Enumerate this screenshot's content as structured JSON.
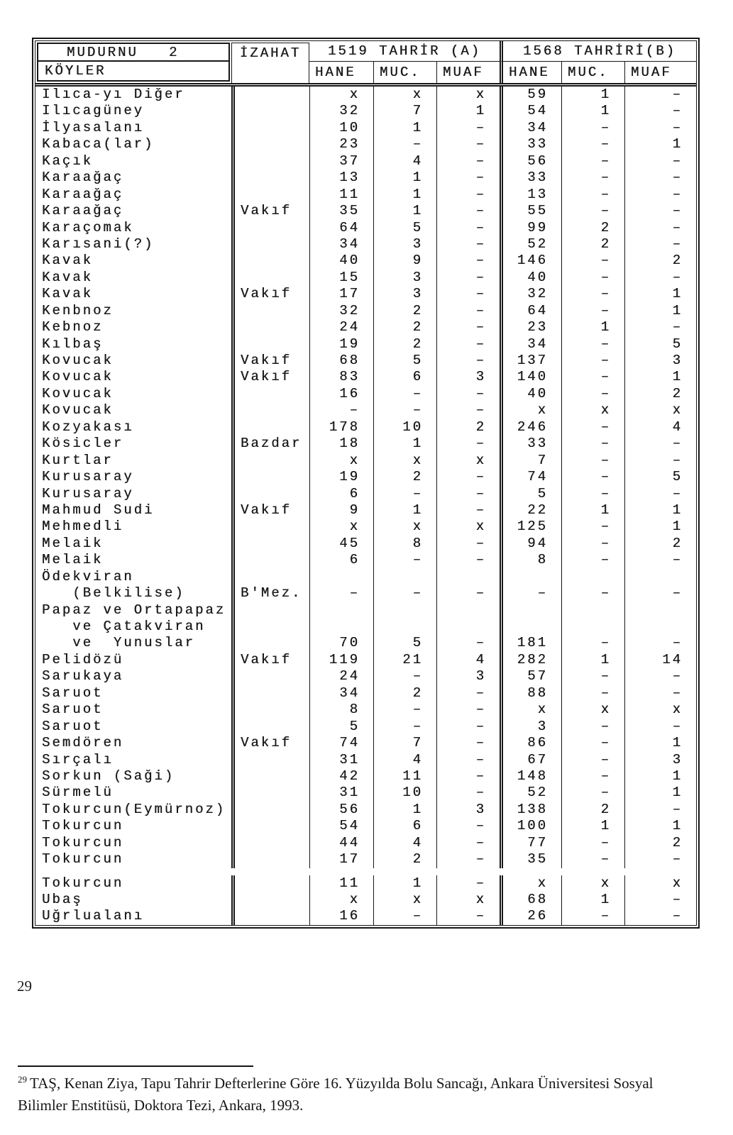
{
  "colors": {
    "ink": "#1b1b1b",
    "paper": "#ffffff"
  },
  "table": {
    "header": {
      "title": "MUDURNU   2",
      "koyler": "KÖYLER",
      "izahat": "İZAHAT",
      "group_a": "1519 TAHRİR (A)",
      "group_b": "1568 TAHRİRİ(B)",
      "sub": [
        "HANE",
        "MUC.",
        "MUAF"
      ]
    },
    "rows": [
      {
        "koy": "Ilıca-yı Diğer",
        "iz": "",
        "a": [
          "x",
          "x",
          "x"
        ],
        "b": [
          "59",
          "1",
          "–"
        ]
      },
      {
        "koy": "Ilıcagüney",
        "iz": "",
        "a": [
          "32",
          "7",
          "1"
        ],
        "b": [
          "54",
          "1",
          "–"
        ]
      },
      {
        "koy": "İlyasalanı",
        "iz": "",
        "a": [
          "10",
          "1",
          "–"
        ],
        "b": [
          "34",
          "–",
          "–"
        ]
      },
      {
        "koy": "Kabaca(lar)",
        "iz": "",
        "a": [
          "23",
          "–",
          "–"
        ],
        "b": [
          "33",
          "–",
          "1"
        ]
      },
      {
        "koy": "Kaçık",
        "iz": "",
        "a": [
          "37",
          "4",
          "–"
        ],
        "b": [
          "56",
          "–",
          "–"
        ]
      },
      {
        "koy": "Karaağaç",
        "iz": "",
        "a": [
          "13",
          "1",
          "–"
        ],
        "b": [
          "33",
          "–",
          "–"
        ]
      },
      {
        "koy": "Karaağaç",
        "iz": "",
        "a": [
          "11",
          "1",
          "–"
        ],
        "b": [
          "13",
          "–",
          "–"
        ]
      },
      {
        "koy": "Karaağaç",
        "iz": "Vakıf",
        "a": [
          "35",
          "1",
          "–"
        ],
        "b": [
          "55",
          "–",
          "–"
        ]
      },
      {
        "koy": "Karaçomak",
        "iz": "",
        "a": [
          "64",
          "5",
          "–"
        ],
        "b": [
          "99",
          "2",
          "–"
        ]
      },
      {
        "koy": "Karısani(?)",
        "iz": "",
        "a": [
          "34",
          "3",
          "–"
        ],
        "b": [
          "52",
          "2",
          "–"
        ]
      },
      {
        "koy": "Kavak",
        "iz": "",
        "a": [
          "40",
          "9",
          "–"
        ],
        "b": [
          "146",
          "–",
          "2"
        ]
      },
      {
        "koy": "Kavak",
        "iz": "",
        "a": [
          "15",
          "3",
          "–"
        ],
        "b": [
          "40",
          "–",
          "–"
        ]
      },
      {
        "koy": "Kavak",
        "iz": "Vakıf",
        "a": [
          "17",
          "3",
          "–"
        ],
        "b": [
          "32",
          "–",
          "1"
        ]
      },
      {
        "koy": "Kenbnoz",
        "iz": "",
        "a": [
          "32",
          "2",
          "–"
        ],
        "b": [
          "64",
          "–",
          "1"
        ]
      },
      {
        "koy": "Kebnoz",
        "iz": "",
        "a": [
          "24",
          "2",
          "–"
        ],
        "b": [
          "23",
          "1",
          "–"
        ]
      },
      {
        "koy": "Kılbaş",
        "iz": "",
        "a": [
          "19",
          "2",
          "–"
        ],
        "b": [
          "34",
          "–",
          "5"
        ]
      },
      {
        "koy": "Kovucak",
        "iz": "Vakıf",
        "a": [
          "68",
          "5",
          "–"
        ],
        "b": [
          "137",
          "–",
          "3"
        ]
      },
      {
        "koy": "Kovucak",
        "iz": "Vakıf",
        "a": [
          "83",
          "6",
          "3"
        ],
        "b": [
          "140",
          "–",
          "1"
        ]
      },
      {
        "koy": "Kovucak",
        "iz": "",
        "a": [
          "16",
          "–",
          "–"
        ],
        "b": [
          "40",
          "–",
          "2"
        ]
      },
      {
        "koy": "Kovucak",
        "iz": "",
        "a": [
          "–",
          "–",
          "–"
        ],
        "b": [
          "x",
          "x",
          "x"
        ]
      },
      {
        "koy": "Kozyakası",
        "iz": "",
        "a": [
          "178",
          "10",
          "2"
        ],
        "b": [
          "246",
          "–",
          "4"
        ]
      },
      {
        "koy": "Kösicler",
        "iz": "Bazdar",
        "a": [
          "18",
          "1",
          "–"
        ],
        "b": [
          "33",
          "–",
          "–"
        ]
      },
      {
        "koy": "Kurtlar",
        "iz": "",
        "a": [
          "x",
          "x",
          "x"
        ],
        "b": [
          "7",
          "–",
          "–"
        ]
      },
      {
        "koy": "Kurusaray",
        "iz": "",
        "a": [
          "19",
          "2",
          "–"
        ],
        "b": [
          "74",
          "–",
          "5"
        ]
      },
      {
        "koy": "Kurusaray",
        "iz": "",
        "a": [
          "6",
          "–",
          "–"
        ],
        "b": [
          "5",
          "–",
          "–"
        ]
      },
      {
        "koy": "Mahmud Sudi",
        "iz": "Vakıf",
        "a": [
          "9",
          "1",
          "–"
        ],
        "b": [
          "22",
          "1",
          "1"
        ]
      },
      {
        "koy": "Mehmedli",
        "iz": "",
        "a": [
          "x",
          "x",
          "x"
        ],
        "b": [
          "125",
          "–",
          "1"
        ]
      },
      {
        "koy": "Melaik",
        "iz": "",
        "a": [
          "45",
          "8",
          "–"
        ],
        "b": [
          "94",
          "–",
          "2"
        ]
      },
      {
        "koy": "Melaik",
        "iz": "",
        "a": [
          "6",
          "–",
          "–"
        ],
        "b": [
          "8",
          "–",
          "–"
        ]
      },
      {
        "koy": "Ödekviran",
        "iz": "",
        "a": [
          "",
          "",
          ""
        ],
        "b": [
          "",
          "",
          ""
        ]
      },
      {
        "koy": "   (Belkilise)",
        "iz": "B'Mez.",
        "a": [
          "–",
          "–",
          "–"
        ],
        "b": [
          "–",
          "–",
          "–"
        ]
      },
      {
        "koy": "Papaz ve Ortapapaz",
        "iz": "",
        "a": [
          "",
          "",
          ""
        ],
        "b": [
          "",
          "",
          ""
        ]
      },
      {
        "koy": "   ve Çatakviran",
        "iz": "",
        "a": [
          "",
          "",
          ""
        ],
        "b": [
          "",
          "",
          ""
        ]
      },
      {
        "koy": "   ve  Yunuslar",
        "iz": "",
        "a": [
          "70",
          "5",
          "–"
        ],
        "b": [
          "181",
          "–",
          "–"
        ]
      },
      {
        "koy": "Pelidözü",
        "iz": "Vakıf",
        "a": [
          "119",
          "21",
          "4"
        ],
        "b": [
          "282",
          "1",
          "14"
        ]
      },
      {
        "koy": "Sarukaya",
        "iz": "",
        "a": [
          "24",
          "–",
          "3"
        ],
        "b": [
          "57",
          "–",
          "–"
        ]
      },
      {
        "koy": "Saruot",
        "iz": "",
        "a": [
          "34",
          "2",
          "–"
        ],
        "b": [
          "88",
          "–",
          "–"
        ]
      },
      {
        "koy": "Saruot",
        "iz": "",
        "a": [
          "8",
          "–",
          "–"
        ],
        "b": [
          "x",
          "x",
          "x"
        ]
      },
      {
        "koy": "Saruot",
        "iz": "",
        "a": [
          "5",
          "–",
          "–"
        ],
        "b": [
          "3",
          "–",
          "–"
        ]
      },
      {
        "koy": "Semdören",
        "iz": "Vakıf",
        "a": [
          "74",
          "7",
          "–"
        ],
        "b": [
          "86",
          "–",
          "1"
        ]
      },
      {
        "koy": "Sırçalı",
        "iz": "",
        "a": [
          "31",
          "4",
          "–"
        ],
        "b": [
          "67",
          "–",
          "3"
        ]
      },
      {
        "koy": "Sorkun (Saği)",
        "iz": "",
        "a": [
          "42",
          "11",
          "–"
        ],
        "b": [
          "148",
          "–",
          "1"
        ]
      },
      {
        "koy": "Sürmelü",
        "iz": "",
        "a": [
          "31",
          "10",
          "–"
        ],
        "b": [
          "52",
          "–",
          "1"
        ]
      },
      {
        "koy": "Tokurcun(Eymürnoz)",
        "iz": "",
        "a": [
          "56",
          "1",
          "3"
        ],
        "b": [
          "138",
          "2",
          "–"
        ]
      },
      {
        "koy": "Tokurcun",
        "iz": "",
        "a": [
          "54",
          "6",
          "–"
        ],
        "b": [
          "100",
          "1",
          "1"
        ]
      },
      {
        "koy": "Tokurcun",
        "iz": "",
        "a": [
          "44",
          "4",
          "–"
        ],
        "b": [
          "77",
          "–",
          "2"
        ]
      },
      {
        "koy": "Tokurcun",
        "iz": "",
        "a": [
          "17",
          "2",
          "–"
        ],
        "b": [
          "35",
          "–",
          "–"
        ]
      },
      {
        "splice": true
      },
      {
        "koy": "Tokurcun",
        "iz": "",
        "a": [
          "11",
          "1",
          "–"
        ],
        "b": [
          "x",
          "x",
          "x"
        ]
      },
      {
        "koy": "Ubaş",
        "iz": "",
        "a": [
          "x",
          "x",
          "x"
        ],
        "b": [
          "68",
          "1",
          "–"
        ]
      },
      {
        "koy": "Uğrlualanı",
        "iz": "",
        "a": [
          "16",
          "–",
          "–"
        ],
        "b": [
          "26",
          "–",
          "–"
        ]
      },
      {
        "filler": true
      }
    ]
  },
  "footer": {
    "page_number": "29",
    "footnote_marker": "29",
    "footnote_text": "TAŞ, Kenan Ziya, Tapu Tahrir Defterlerine Göre 16. Yüzyılda Bolu Sancağı, Ankara Üniversitesi Sosyal Bilimler Enstitüsü, Doktora Tezi, Ankara, 1993."
  }
}
